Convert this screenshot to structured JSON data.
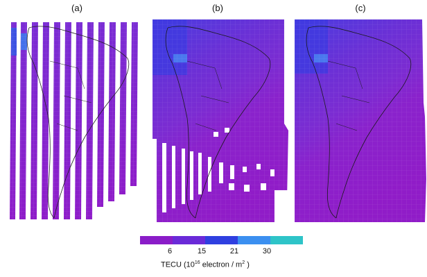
{
  "panels": [
    {
      "label": "(a)"
    },
    {
      "label": "(b)"
    },
    {
      "label": "(c)"
    }
  ],
  "colorbar": {
    "ticks": [
      "6",
      "15",
      "21",
      "30"
    ],
    "colors": [
      "#8a1cc8",
      "#6a2ad8",
      "#2f3fe0",
      "#3b8ff0",
      "#2ec4c8"
    ]
  },
  "unit_label": {
    "prefix": "TECU (10",
    "exponent": "16",
    "middle": " electron / m",
    "exponent2": "2",
    "suffix": " )"
  },
  "map_colors": {
    "purple": "#8d1cc9",
    "violet": "#7930d2",
    "blue": "#3d39e0",
    "light_blue": "#3f78ee"
  }
}
